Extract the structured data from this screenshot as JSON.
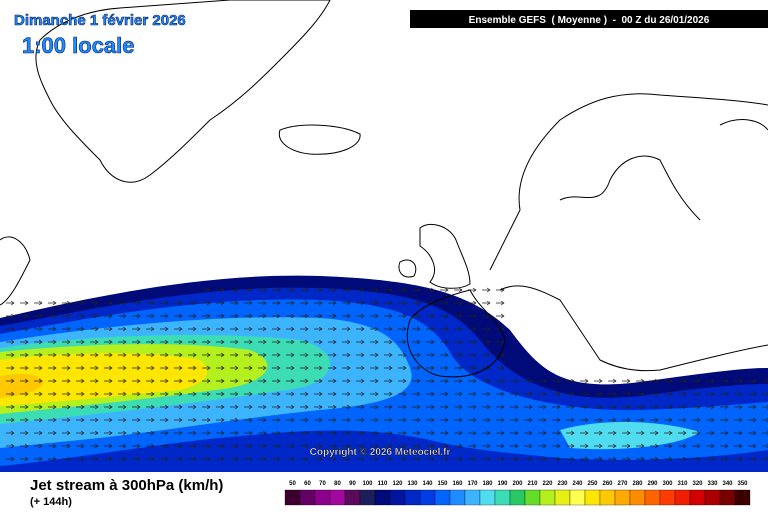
{
  "header": {
    "date": "Dimanche 1 février 2026",
    "time": "1:00 locale",
    "run": "Ensemble GEFS  ( Moyenne )  -  00 Z du 26/01/2026"
  },
  "map": {
    "copyright": "Copyright © 2026 Meteociel.fr"
  },
  "footer": {
    "title": "Jet stream à 300hPa (km/h)",
    "lead": "(+ 144h)"
  },
  "legend": {
    "values": [
      50,
      60,
      70,
      80,
      90,
      100,
      110,
      120,
      130,
      140,
      150,
      160,
      170,
      180,
      190,
      200,
      210,
      220,
      230,
      240,
      250,
      260,
      270,
      280,
      290,
      300,
      310,
      320,
      330,
      340,
      350
    ],
    "colors": [
      "#3c0030",
      "#640064",
      "#8c008c",
      "#a0089e",
      "#5a0a5a",
      "#1e1e5a",
      "#000a78",
      "#0014a0",
      "#0028c8",
      "#003ce6",
      "#0064ff",
      "#1e8cff",
      "#3cb4ff",
      "#50dcf0",
      "#3cdcb4",
      "#28c864",
      "#64dc28",
      "#b4f01e",
      "#e6f014",
      "#ffff50",
      "#ffe600",
      "#ffc800",
      "#ffaa00",
      "#ff8c00",
      "#ff6400",
      "#ff3c00",
      "#f01e00",
      "#d20000",
      "#aa0000",
      "#780000",
      "#3c0000"
    ]
  }
}
